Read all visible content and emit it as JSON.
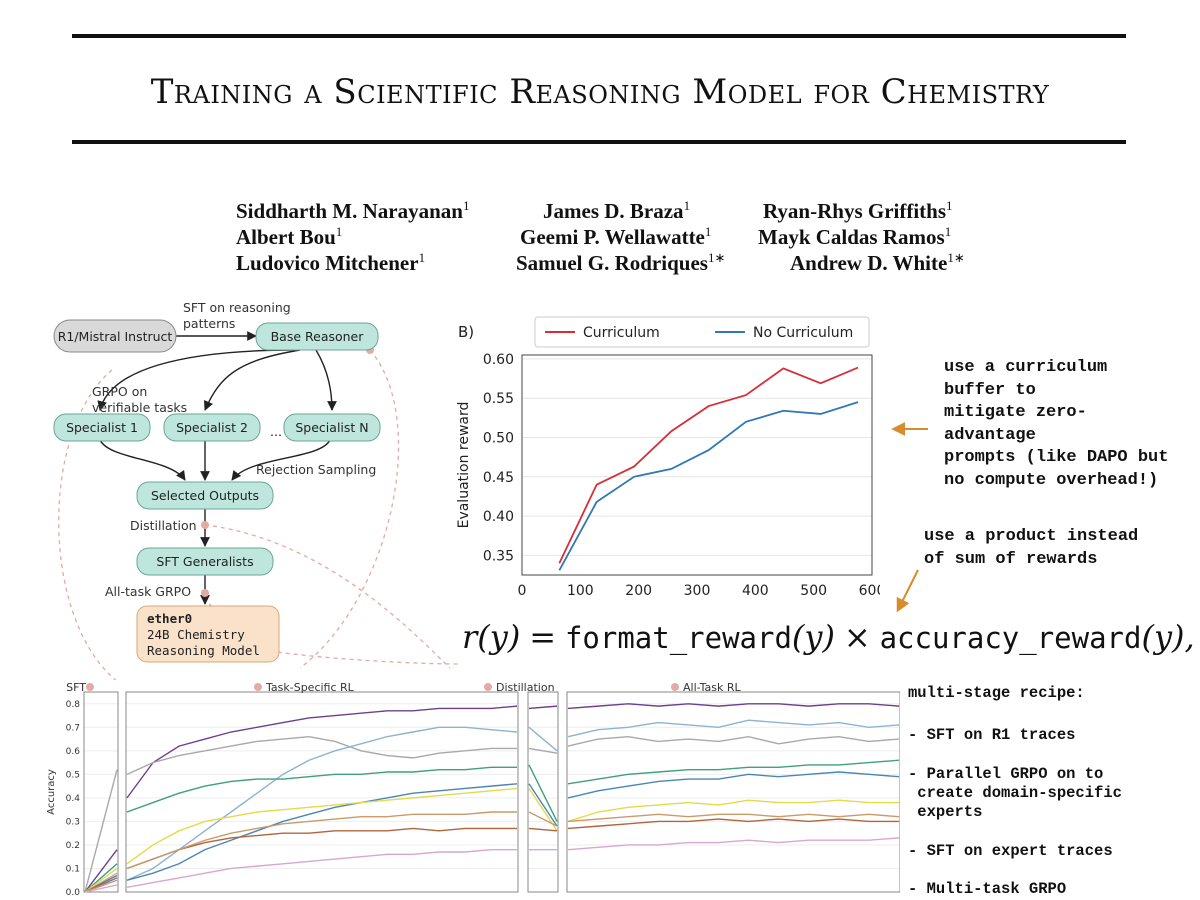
{
  "paper": {
    "title": "Training a Scientific Reasoning Model for Chemistry",
    "authors": [
      {
        "name": "Siddharth M. Narayanan",
        "aff": "1"
      },
      {
        "name": "James D. Braza",
        "aff": "1"
      },
      {
        "name": "Ryan-Rhys Griffiths",
        "aff": "1"
      },
      {
        "name": "Albert Bou",
        "aff": "1"
      },
      {
        "name": "Geemi P. Wellawatte",
        "aff": "1"
      },
      {
        "name": "Mayk Caldas Ramos",
        "aff": "1"
      },
      {
        "name": "Ludovico Mitchener",
        "aff": "1"
      },
      {
        "name": "Samuel G. Rodriques",
        "aff": "1∗"
      },
      {
        "name": "Andrew D. White",
        "aff": "1∗"
      }
    ]
  },
  "diagram": {
    "nodes": {
      "start": "R1/Mistral Instruct",
      "base": "Base Reasoner",
      "spec1": "Specialist 1",
      "spec2": "Specialist 2",
      "specN": "Specialist N",
      "ellipsis": "...",
      "selected": "Selected Outputs",
      "sft": "SFT Generalists",
      "ether_name": "ether0",
      "ether_desc1": "24B Chemistry",
      "ether_desc2": "Reasoning Model"
    },
    "edges": {
      "sft_reasoning1": "SFT on reasoning",
      "sft_reasoning2": "patterns",
      "grpo1": "GRPO on",
      "grpo2": "verifiable tasks",
      "rejection": "Rejection Sampling",
      "distillation": "Distillation",
      "alltask": "All-task GRPO"
    }
  },
  "chart_data": [
    {
      "type": "line",
      "panel_label": "B)",
      "title": "",
      "xlabel": "",
      "ylabel": "Evaluation reward",
      "xlim": [
        0,
        600
      ],
      "ylim": [
        0.325,
        0.605
      ],
      "xticks": [
        "0",
        "100",
        "200",
        "300",
        "400",
        "500",
        "600"
      ],
      "yticks": [
        "0.35",
        "0.40",
        "0.45",
        "0.50",
        "0.55",
        "0.60"
      ],
      "series": [
        {
          "name": "Curriculum",
          "color": "#d62f3a",
          "x": [
            64,
            128,
            192,
            256,
            320,
            384,
            448,
            512,
            576
          ],
          "y": [
            0.34,
            0.44,
            0.463,
            0.508,
            0.54,
            0.554,
            0.588,
            0.569,
            0.589
          ]
        },
        {
          "name": "No Curriculum",
          "color": "#2f78b5",
          "x": [
            64,
            128,
            192,
            256,
            320,
            384,
            448,
            512,
            576
          ],
          "y": [
            0.331,
            0.418,
            0.45,
            0.46,
            0.484,
            0.52,
            0.534,
            0.53,
            0.545
          ]
        }
      ]
    },
    {
      "type": "line",
      "title": "",
      "ylabel": "Accuracy",
      "ylim": [
        0,
        0.85
      ],
      "yticks": [
        "0.0",
        "0.1",
        "0.2",
        "0.3",
        "0.4",
        "0.5",
        "0.6",
        "0.7",
        "0.8"
      ],
      "stage_labels": [
        "SFT",
        "Task-Specific RL",
        "Distillation",
        "All-Task RL"
      ],
      "series": [
        {
          "name": "purple",
          "color": "#6e3f8f",
          "sft": [
            0.0,
            0.18
          ],
          "rl": [
            0.4,
            0.55,
            0.62,
            0.65,
            0.68,
            0.7,
            0.72,
            0.74,
            0.75,
            0.76,
            0.77,
            0.77,
            0.78,
            0.78,
            0.78,
            0.79
          ],
          "dist": [
            0.78,
            0.79
          ],
          "all": [
            0.78,
            0.79,
            0.8,
            0.79,
            0.8,
            0.79,
            0.8,
            0.8,
            0.79,
            0.8,
            0.8,
            0.79
          ]
        },
        {
          "name": "grey",
          "color": "#a9a9a9",
          "sft": [
            0.0,
            0.52
          ],
          "rl": [
            0.5,
            0.55,
            0.58,
            0.6,
            0.62,
            0.64,
            0.65,
            0.66,
            0.64,
            0.6,
            0.58,
            0.57,
            0.59,
            0.6,
            0.61,
            0.61
          ],
          "dist": [
            0.61,
            0.59
          ],
          "all": [
            0.62,
            0.65,
            0.66,
            0.64,
            0.65,
            0.64,
            0.66,
            0.63,
            0.65,
            0.66,
            0.64,
            0.65
          ]
        },
        {
          "name": "lightblue",
          "color": "#8fb3cf",
          "sft": [
            0.0,
            0.08
          ],
          "rl": [
            0.05,
            0.1,
            0.18,
            0.26,
            0.34,
            0.42,
            0.5,
            0.56,
            0.6,
            0.63,
            0.66,
            0.68,
            0.7,
            0.7,
            0.69,
            0.68
          ],
          "dist": [
            0.7,
            0.6
          ],
          "all": [
            0.66,
            0.69,
            0.7,
            0.72,
            0.71,
            0.7,
            0.73,
            0.72,
            0.71,
            0.72,
            0.7,
            0.71
          ]
        },
        {
          "name": "green",
          "color": "#3f9f7f",
          "sft": [
            0.0,
            0.12
          ],
          "rl": [
            0.34,
            0.38,
            0.42,
            0.45,
            0.47,
            0.48,
            0.48,
            0.49,
            0.5,
            0.5,
            0.51,
            0.51,
            0.52,
            0.52,
            0.53,
            0.53
          ],
          "dist": [
            0.54,
            0.3
          ],
          "all": [
            0.46,
            0.48,
            0.5,
            0.51,
            0.52,
            0.52,
            0.53,
            0.53,
            0.54,
            0.54,
            0.55,
            0.56
          ]
        },
        {
          "name": "steelblue",
          "color": "#4a86b5",
          "sft": [
            0.0,
            0.06
          ],
          "rl": [
            0.05,
            0.08,
            0.12,
            0.18,
            0.22,
            0.26,
            0.3,
            0.33,
            0.36,
            0.38,
            0.4,
            0.42,
            0.43,
            0.44,
            0.45,
            0.46
          ],
          "dist": [
            0.46,
            0.28
          ],
          "all": [
            0.4,
            0.43,
            0.45,
            0.47,
            0.48,
            0.48,
            0.5,
            0.49,
            0.5,
            0.51,
            0.5,
            0.49
          ]
        },
        {
          "name": "yellow",
          "color": "#e6d94a",
          "sft": [
            0.0,
            0.1
          ],
          "rl": [
            0.12,
            0.2,
            0.26,
            0.3,
            0.32,
            0.34,
            0.35,
            0.36,
            0.37,
            0.38,
            0.39,
            0.4,
            0.41,
            0.42,
            0.43,
            0.44
          ],
          "dist": [
            0.44,
            0.26
          ],
          "all": [
            0.3,
            0.34,
            0.36,
            0.37,
            0.38,
            0.37,
            0.39,
            0.38,
            0.38,
            0.39,
            0.38,
            0.38
          ]
        },
        {
          "name": "brown",
          "color": "#b5633a",
          "sft": [
            0.0,
            0.07
          ],
          "rl": [
            0.1,
            0.14,
            0.18,
            0.21,
            0.23,
            0.24,
            0.25,
            0.25,
            0.26,
            0.26,
            0.26,
            0.27,
            0.26,
            0.27,
            0.27,
            0.27
          ],
          "dist": [
            0.27,
            0.26
          ],
          "all": [
            0.27,
            0.28,
            0.29,
            0.3,
            0.3,
            0.31,
            0.3,
            0.31,
            0.3,
            0.31,
            0.3,
            0.3
          ]
        },
        {
          "name": "tan",
          "color": "#c99a6a",
          "sft": [
            0.0,
            0.05
          ],
          "rl": [
            0.1,
            0.14,
            0.18,
            0.22,
            0.25,
            0.27,
            0.29,
            0.3,
            0.31,
            0.32,
            0.32,
            0.33,
            0.33,
            0.33,
            0.34,
            0.34
          ],
          "dist": [
            0.34,
            0.28
          ],
          "all": [
            0.3,
            0.31,
            0.32,
            0.33,
            0.32,
            0.33,
            0.33,
            0.32,
            0.33,
            0.32,
            0.33,
            0.32
          ]
        },
        {
          "name": "pink",
          "color": "#d9a6d0",
          "sft": [
            0.0,
            0.03
          ],
          "rl": [
            0.02,
            0.04,
            0.06,
            0.08,
            0.1,
            0.11,
            0.12,
            0.13,
            0.14,
            0.15,
            0.16,
            0.16,
            0.17,
            0.17,
            0.18,
            0.18
          ],
          "dist": [
            0.18,
            0.18
          ],
          "all": [
            0.18,
            0.19,
            0.2,
            0.2,
            0.21,
            0.21,
            0.22,
            0.21,
            0.22,
            0.22,
            0.22,
            0.23
          ]
        }
      ]
    }
  ],
  "notes": {
    "curriculum": "use a curriculum\nbuffer to\nmitigate zero-\nadvantage\nprompts (like DAPO but\nno compute overhead!)",
    "product": "use a product instead\nof sum of rewards",
    "recipe_head": "multi-stage recipe:",
    "recipe_items": [
      "SFT on R1 traces",
      "Parallel GRPO on to\n create domain-specific\n experts",
      "SFT on expert traces",
      "Multi-task GRPO"
    ],
    "arrow_color": "#d98c2b"
  },
  "formula": {
    "lhs": "r(y)",
    "eq": "=",
    "term1": "format_reward",
    "arg1": "(y)",
    "times": "×",
    "term2": "accuracy_reward",
    "arg2": "(y),"
  }
}
